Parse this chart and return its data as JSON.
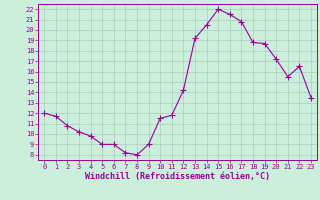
{
  "x": [
    0,
    1,
    2,
    3,
    4,
    5,
    6,
    7,
    8,
    9,
    10,
    11,
    12,
    13,
    14,
    15,
    16,
    17,
    18,
    19,
    20,
    21,
    22,
    23
  ],
  "y": [
    12.0,
    11.7,
    10.8,
    10.2,
    9.8,
    9.0,
    9.0,
    8.2,
    8.0,
    9.0,
    11.5,
    11.8,
    14.2,
    19.2,
    20.5,
    22.0,
    21.5,
    20.8,
    18.8,
    18.7,
    17.2,
    15.5,
    16.5,
    13.5
  ],
  "line_color": "#990099",
  "marker": "+",
  "marker_size": 4.0,
  "line_width": 0.8,
  "bg_color": "#cceedd",
  "grid_color": "#aaccbb",
  "xlabel": "Windchill (Refroidissement éolien,°C)",
  "xlabel_color": "#990099",
  "xlim": [
    -0.5,
    23.5
  ],
  "ylim": [
    7.5,
    22.5
  ],
  "yticks": [
    8,
    9,
    10,
    11,
    12,
    13,
    14,
    15,
    16,
    17,
    18,
    19,
    20,
    21,
    22
  ],
  "xticks": [
    0,
    1,
    2,
    3,
    4,
    5,
    6,
    7,
    8,
    9,
    10,
    11,
    12,
    13,
    14,
    15,
    16,
    17,
    18,
    19,
    20,
    21,
    22,
    23
  ],
  "tick_color": "#990099",
  "tick_fontsize": 5.0,
  "xlabel_fontsize": 6.0,
  "axis_line_color": "#990099"
}
